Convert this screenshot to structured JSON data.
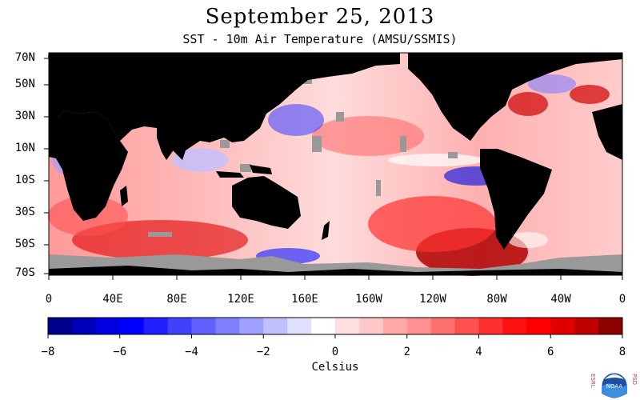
{
  "header": {
    "title": "September 25, 2013",
    "subtitle": "SST - 10m Air Temperature (AMSU/SSMIS)"
  },
  "map": {
    "lat_labels": [
      "70N",
      "50N",
      "30N",
      "10N",
      "10S",
      "30S",
      "50S",
      "70S"
    ],
    "lon_labels": [
      "0",
      "40E",
      "80E",
      "120E",
      "160E",
      "160W",
      "120W",
      "80W",
      "40W",
      "0"
    ],
    "land_color": "#000000",
    "missing_color": "#999999"
  },
  "colorbar": {
    "ticks": [
      "−8",
      "−6",
      "−4",
      "−2",
      "0",
      "2",
      "4",
      "6",
      "8"
    ],
    "min": -8,
    "max": 8,
    "colors": [
      "#00008f",
      "#0000b8",
      "#0000e0",
      "#0000ff",
      "#2020ff",
      "#4040ff",
      "#6060ff",
      "#8080ff",
      "#a0a0ff",
      "#c0c0ff",
      "#e0e0ff",
      "#ffffff",
      "#ffe0e0",
      "#ffc8c8",
      "#ffa8a8",
      "#ff9090",
      "#ff7070",
      "#ff5050",
      "#ff3030",
      "#ff1010",
      "#ff0000",
      "#e00000",
      "#c00000",
      "#8f0000"
    ],
    "label": "Celsius"
  },
  "logo": {
    "left_text": "ESRL",
    "right_text": "PSD",
    "badge_text": "NOAA",
    "icon": "noaa-logo-icon"
  }
}
